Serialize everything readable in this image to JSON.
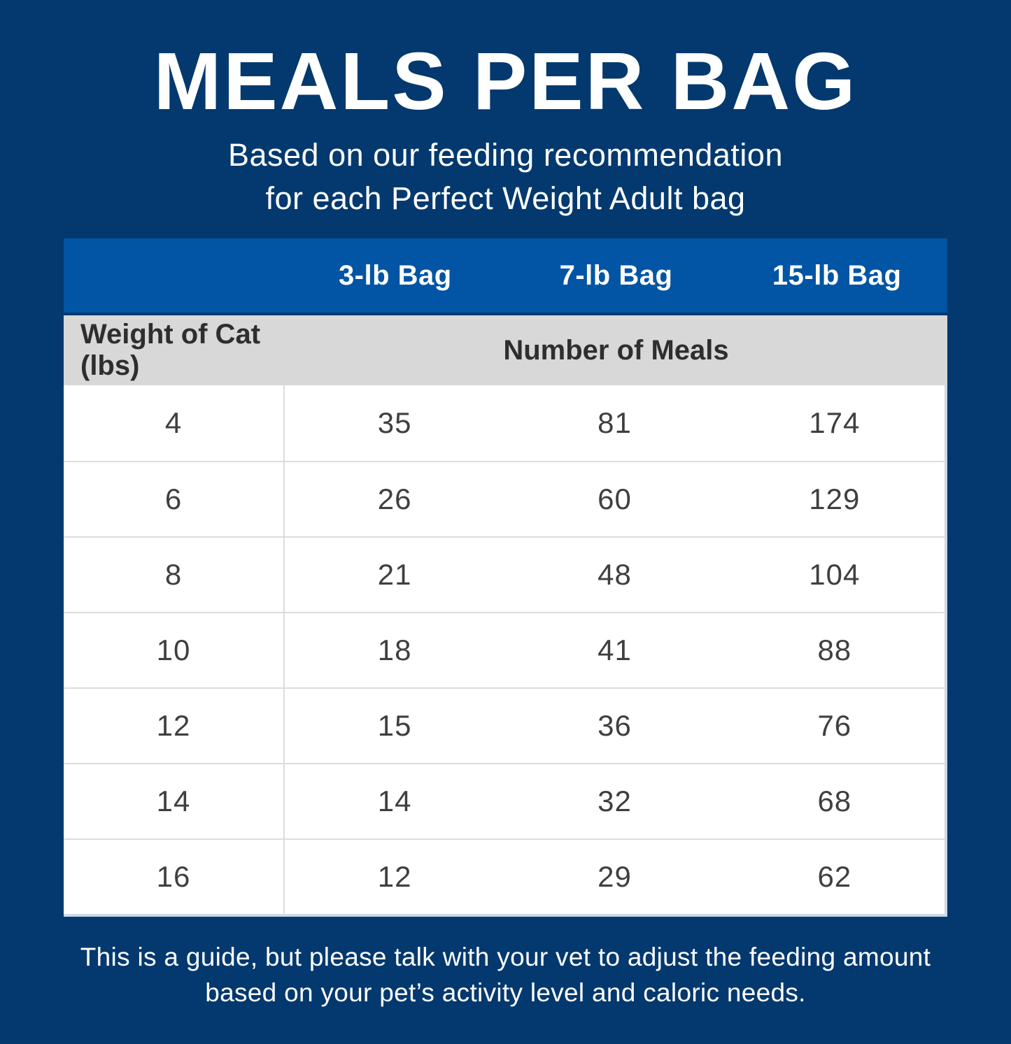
{
  "title": "MEALS PER BAG",
  "subtitle": {
    "line1": "Based on our feeding recommendation",
    "line2": "for each Perfect Weight Adult bag"
  },
  "table": {
    "bag_headers": [
      "3-lb Bag",
      "7-lb Bag",
      "15-lb Bag"
    ],
    "weight_header": "Weight of Cat (lbs)",
    "meals_header": "Number of Meals",
    "rows": [
      {
        "weight": "4",
        "meals": [
          "35",
          "81",
          "174"
        ]
      },
      {
        "weight": "6",
        "meals": [
          "26",
          "60",
          "129"
        ]
      },
      {
        "weight": "8",
        "meals": [
          "21",
          "48",
          "104"
        ]
      },
      {
        "weight": "10",
        "meals": [
          "18",
          "41",
          "88"
        ]
      },
      {
        "weight": "12",
        "meals": [
          "15",
          "36",
          "76"
        ]
      },
      {
        "weight": "14",
        "meals": [
          "14",
          "32",
          "68"
        ]
      },
      {
        "weight": "16",
        "meals": [
          "12",
          "29",
          "62"
        ]
      }
    ]
  },
  "footer": {
    "line1": "This is a guide, but please talk with your vet to adjust the feeding amount",
    "line2": "based on your pet’s activity level and caloric needs."
  },
  "colors": {
    "background": "#03396E",
    "header_blue": "#0255A4",
    "row_gray": "#D8D8D8",
    "row_white": "#FFFFFF",
    "text_white": "#FFFFFF",
    "text_dark": "#3F3F3F",
    "divider_gray": "#DCDCDC"
  },
  "chart_data": {
    "type": "table",
    "title": "MEALS PER BAG",
    "subtitle": "Based on our feeding recommendation for each Perfect Weight Adult bag",
    "columns": [
      "Weight of Cat (lbs)",
      "3-lb Bag",
      "7-lb Bag",
      "15-lb Bag"
    ],
    "value_label": "Number of Meals",
    "rows": [
      [
        4,
        35,
        81,
        174
      ],
      [
        6,
        26,
        60,
        129
      ],
      [
        8,
        21,
        48,
        104
      ],
      [
        10,
        18,
        41,
        88
      ],
      [
        12,
        15,
        36,
        76
      ],
      [
        14,
        14,
        32,
        68
      ],
      [
        16,
        12,
        29,
        62
      ]
    ],
    "note": "This is a guide, but please talk with your vet to adjust the feeding amount based on your pet’s activity level and caloric needs."
  }
}
